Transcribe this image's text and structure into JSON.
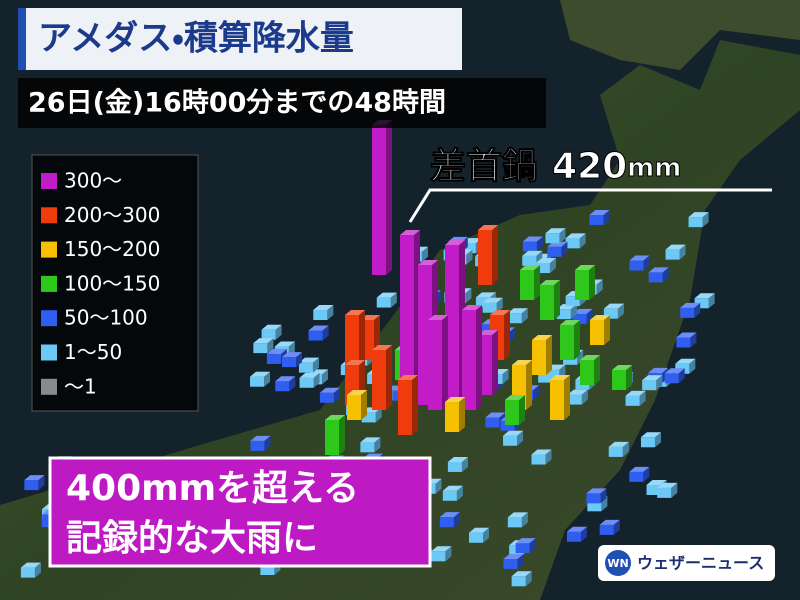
{
  "header": {
    "title": "アメダス・積算降水量",
    "subtitle": "26日(金)16時00分までの48時間"
  },
  "legend": [
    {
      "label": "300～",
      "color": "#c21bc8"
    },
    {
      "label": "200～300",
      "color": "#f03c0c"
    },
    {
      "label": "150～200",
      "color": "#f5c000"
    },
    {
      "label": "100～150",
      "color": "#2ec81a"
    },
    {
      "label": "50～100",
      "color": "#2f5ef0"
    },
    {
      "label": "1～50",
      "color": "#6cc8f5"
    },
    {
      "label": "～1",
      "color": "#8a8a8a"
    }
  ],
  "callout": {
    "place": "差首鍋",
    "value": 420,
    "unit": "mm"
  },
  "banner": {
    "lines": [
      "400mmを超える",
      "記録的な大雨に"
    ]
  },
  "logo": {
    "icon": "WN",
    "text": "ウェザーニュース"
  }
}
